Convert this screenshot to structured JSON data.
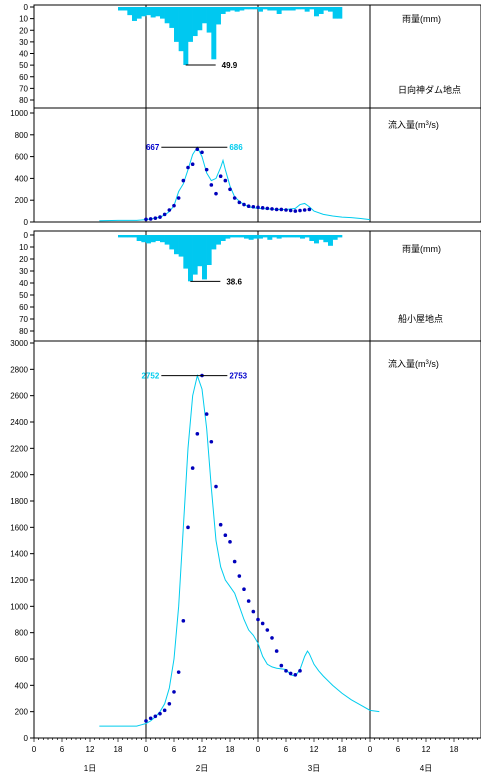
{
  "colors": {
    "rain": "#00c8f0",
    "calc": "#00ccee",
    "obs": "#0000bb",
    "axis": "#000000",
    "peak_cyan": "#00ccee",
    "peak_blue": "#0000cc"
  },
  "xaxis": {
    "hour_ticks": [
      "0",
      "6",
      "12",
      "18",
      "0",
      "6",
      "12",
      "18",
      "0",
      "6",
      "12",
      "18",
      "0",
      "6",
      "12",
      "18"
    ],
    "day_labels": [
      "1日",
      "2日",
      "3日",
      "4日"
    ]
  },
  "chart_data": [
    {
      "type": "bar",
      "title": "日向神ダム地点",
      "ylabel": "雨量(mm)",
      "ylim": [
        0,
        85
      ],
      "yticks": [
        "0",
        "10",
        "20",
        "30",
        "40",
        "50",
        "60",
        "70",
        "80"
      ],
      "inverted": true,
      "x_start_hour": 18,
      "values": [
        3,
        3,
        7,
        12,
        10,
        8,
        7,
        9,
        8,
        10,
        14,
        18,
        30,
        38,
        49.9,
        30,
        25,
        20,
        14,
        22,
        45,
        15,
        6,
        4,
        3,
        4,
        3,
        2,
        2,
        2,
        4,
        2,
        3,
        3,
        6,
        3,
        3,
        3,
        2,
        2,
        4,
        2,
        8,
        6,
        3,
        4,
        10,
        10
      ],
      "peak_label": "49.9"
    },
    {
      "type": "line",
      "ylabel": "流入量(m3/s)",
      "ylim": [
        0,
        1000
      ],
      "yticks": [
        "0",
        "200",
        "400",
        "600",
        "800",
        "1000"
      ],
      "series": [
        {
          "role": "calculated",
          "points": [
            [
              14,
              12
            ],
            [
              18,
              15
            ],
            [
              22,
              15
            ],
            [
              23,
              18
            ],
            [
              24,
              22
            ],
            [
              25,
              28
            ],
            [
              26,
              35
            ],
            [
              27,
              45
            ],
            [
              28,
              65
            ],
            [
              29,
              95
            ],
            [
              30,
              150
            ],
            [
              31,
              280
            ],
            [
              32,
              350
            ],
            [
              33,
              480
            ],
            [
              34,
              620
            ],
            [
              35,
              686
            ],
            [
              36,
              600
            ],
            [
              37,
              450
            ],
            [
              38,
              380
            ],
            [
              39,
              400
            ],
            [
              40,
              500
            ],
            [
              40.5,
              565
            ],
            [
              41,
              480
            ],
            [
              42,
              330
            ],
            [
              43,
              230
            ],
            [
              44,
              190
            ],
            [
              45,
              160
            ],
            [
              46,
              140
            ],
            [
              47,
              130
            ],
            [
              48,
              125
            ],
            [
              50,
              120
            ],
            [
              52,
              115
            ],
            [
              54,
              115
            ],
            [
              56,
              125
            ],
            [
              57,
              160
            ],
            [
              58,
              170
            ],
            [
              59,
              140
            ],
            [
              60,
              100
            ],
            [
              62,
              70
            ],
            [
              64,
              55
            ],
            [
              66,
              45
            ],
            [
              68,
              40
            ],
            [
              70,
              32
            ],
            [
              72,
              22
            ]
          ]
        },
        {
          "role": "observed",
          "points": [
            [
              24,
              25
            ],
            [
              25,
              28
            ],
            [
              26,
              35
            ],
            [
              27,
              45
            ],
            [
              28,
              70
            ],
            [
              29,
              110
            ],
            [
              30,
              150
            ],
            [
              31,
              220
            ],
            [
              32,
              380
            ],
            [
              33,
              500
            ],
            [
              34,
              530
            ],
            [
              35,
              667
            ],
            [
              36,
              640
            ],
            [
              37,
              480
            ],
            [
              38,
              340
            ],
            [
              39,
              260
            ],
            [
              40,
              420
            ],
            [
              41,
              380
            ],
            [
              42,
              300
            ],
            [
              43,
              220
            ],
            [
              44,
              180
            ],
            [
              45,
              160
            ],
            [
              46,
              145
            ],
            [
              47,
              140
            ],
            [
              48,
              135
            ],
            [
              49,
              130
            ],
            [
              50,
              125
            ],
            [
              51,
              120
            ],
            [
              52,
              115
            ],
            [
              53,
              115
            ],
            [
              54,
              110
            ],
            [
              55,
              105
            ],
            [
              56,
              100
            ],
            [
              57,
              105
            ],
            [
              58,
              110
            ],
            [
              59,
              115
            ]
          ]
        }
      ],
      "peak_labels": {
        "observed": "667",
        "calculated": "686"
      }
    },
    {
      "type": "bar",
      "title": "船小屋地点",
      "ylabel": "雨量(mm)",
      "ylim": [
        0,
        85
      ],
      "yticks": [
        "0",
        "10",
        "20",
        "30",
        "40",
        "50",
        "60",
        "70",
        "80"
      ],
      "inverted": true,
      "x_start_hour": 18,
      "values": [
        2,
        2,
        2,
        2,
        5,
        6,
        7,
        6,
        5,
        6,
        8,
        12,
        16,
        18,
        28,
        38.6,
        33,
        26,
        37,
        25,
        12,
        8,
        5,
        3,
        2,
        2,
        2,
        3,
        4,
        3,
        3,
        2,
        4,
        2,
        3,
        2,
        2,
        2,
        2,
        3,
        2,
        5,
        7,
        4,
        6,
        9,
        4,
        2
      ],
      "peak_label": "38.6"
    },
    {
      "type": "line",
      "ylabel": "流入量(m3/s)",
      "ylim": [
        0,
        3000
      ],
      "yticks": [
        "0",
        "200",
        "400",
        "600",
        "800",
        "1000",
        "1200",
        "1400",
        "1600",
        "1800",
        "2000",
        "2200",
        "2400",
        "2600",
        "2800",
        "3000"
      ],
      "series": [
        {
          "role": "calculated",
          "points": [
            [
              14,
              90
            ],
            [
              18,
              90
            ],
            [
              22,
              90
            ],
            [
              23,
              100
            ],
            [
              24,
              110
            ],
            [
              25,
              130
            ],
            [
              26,
              160
            ],
            [
              27,
              200
            ],
            [
              28,
              260
            ],
            [
              29,
              380
            ],
            [
              30,
              600
            ],
            [
              31,
              1000
            ],
            [
              32,
              1600
            ],
            [
              33,
              2200
            ],
            [
              34,
              2600
            ],
            [
              35,
              2752
            ],
            [
              36,
              2650
            ],
            [
              37,
              2350
            ],
            [
              38,
              1900
            ],
            [
              39,
              1500
            ],
            [
              40,
              1300
            ],
            [
              41,
              1200
            ],
            [
              42,
              1150
            ],
            [
              43,
              1100
            ],
            [
              44,
              1000
            ],
            [
              45,
              900
            ],
            [
              46,
              820
            ],
            [
              47,
              780
            ],
            [
              48,
              720
            ],
            [
              49,
              620
            ],
            [
              50,
              560
            ],
            [
              51,
              540
            ],
            [
              52,
              530
            ],
            [
              54,
              520
            ],
            [
              55,
              480
            ],
            [
              56,
              470
            ],
            [
              57,
              520
            ],
            [
              58,
              620
            ],
            [
              58.6,
              660
            ],
            [
              59,
              640
            ],
            [
              60,
              560
            ],
            [
              61,
              510
            ],
            [
              62,
              470
            ],
            [
              64,
              400
            ],
            [
              66,
              340
            ],
            [
              68,
              290
            ],
            [
              70,
              250
            ],
            [
              72,
              210
            ],
            [
              74,
              200
            ]
          ]
        },
        {
          "role": "observed",
          "points": [
            [
              24,
              130
            ],
            [
              25,
              150
            ],
            [
              26,
              165
            ],
            [
              27,
              185
            ],
            [
              28,
              210
            ],
            [
              29,
              260
            ],
            [
              30,
              350
            ],
            [
              31,
              500
            ],
            [
              32,
              890
            ],
            [
              33,
              1600
            ],
            [
              34,
              2050
            ],
            [
              35,
              2310
            ],
            [
              36,
              2753
            ],
            [
              37,
              2460
            ],
            [
              38,
              2250
            ],
            [
              39,
              1910
            ],
            [
              40,
              1620
            ],
            [
              41,
              1540
            ],
            [
              42,
              1490
            ],
            [
              43,
              1340
            ],
            [
              44,
              1230
            ],
            [
              45,
              1130
            ],
            [
              46,
              1040
            ],
            [
              47,
              960
            ],
            [
              48,
              900
            ],
            [
              49,
              870
            ],
            [
              50,
              820
            ],
            [
              51,
              760
            ],
            [
              52,
              660
            ],
            [
              53,
              550
            ],
            [
              54,
              510
            ],
            [
              55,
              490
            ],
            [
              56,
              480
            ],
            [
              57,
              510
            ]
          ]
        }
      ],
      "peak_labels": {
        "calculated": "2752",
        "observed": "2753"
      }
    }
  ]
}
